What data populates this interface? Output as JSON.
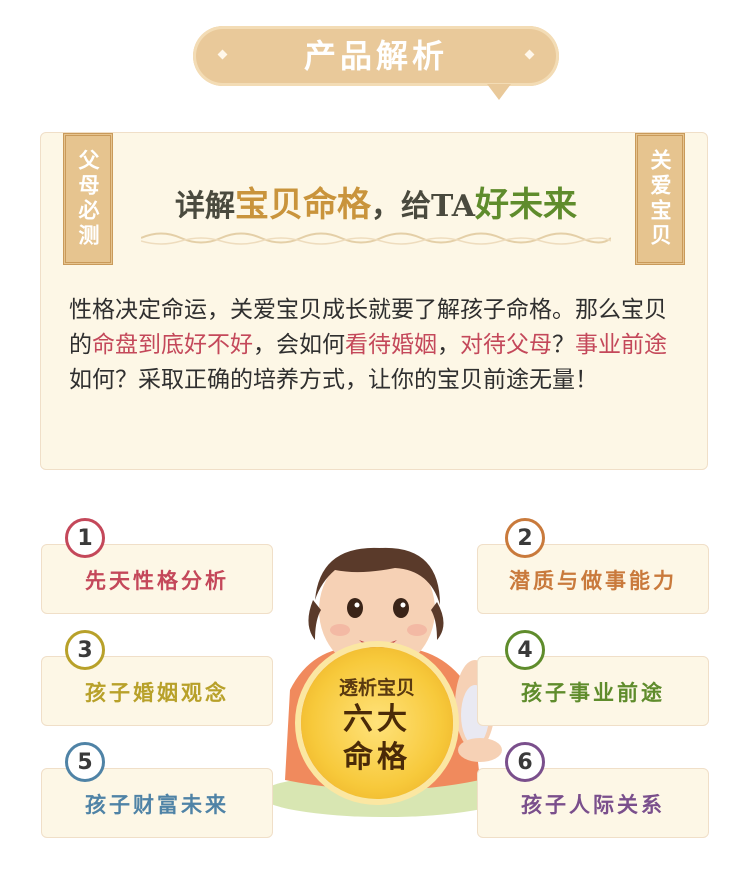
{
  "banner": {
    "title": "产品解析"
  },
  "card": {
    "left_tag": "父母必测",
    "right_tag": "关爱宝贝",
    "headline": {
      "part1": "详解",
      "highlight1": "宝贝命格",
      "part2": "，给TA",
      "highlight2": "好未来"
    },
    "body": {
      "t1": "性格决定命运，关爱宝贝成长就要了解孩子命格。那么宝贝的",
      "r1": "命盘到底好不好",
      "t2": "，会如何",
      "r2": "看待婚姻",
      "t3": "，",
      "r3": "对待父母",
      "t4": "？",
      "r4": "事业前途",
      "t5": "如何？采取正确的培养方式，让你的宝贝前途无量！"
    }
  },
  "features": [
    {
      "num": "1",
      "label": "先天性格分析",
      "color": "#c4485a"
    },
    {
      "num": "2",
      "label": "潜质与做事能力",
      "color": "#c97a3c"
    },
    {
      "num": "3",
      "label": "孩子婚姻观念",
      "color": "#b8a12a"
    },
    {
      "num": "4",
      "label": "孩子事业前途",
      "color": "#5f8c2c"
    },
    {
      "num": "5",
      "label": "孩子财富未来",
      "color": "#4f83a6"
    },
    {
      "num": "6",
      "label": "孩子人际关系",
      "color": "#7a4f8c"
    }
  ],
  "medal": {
    "top": "透析宝贝",
    "line1": "六大",
    "line2": "命格"
  }
}
